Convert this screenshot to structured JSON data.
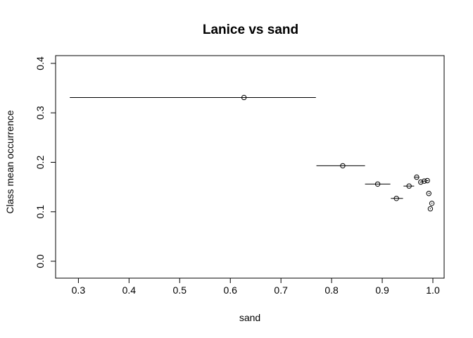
{
  "chart_data": {
    "type": "scatter",
    "title": "Lanice vs sand",
    "xlabel": "sand",
    "ylabel": "Class mean occurrence",
    "xlim": [
      0.28,
      1.0
    ],
    "ylim": [
      0.0,
      0.4
    ],
    "xticks": [
      0.3,
      0.4,
      0.5,
      0.6,
      0.7,
      0.8,
      0.9,
      1.0
    ],
    "xtick_labels": [
      "0.3",
      "0.4",
      "0.5",
      "0.6",
      "0.7",
      "0.8",
      "0.9",
      "1.0"
    ],
    "yticks": [
      0.0,
      0.1,
      0.2,
      0.3,
      0.4
    ],
    "ytick_labels": [
      "0.0",
      "0.1",
      "0.2",
      "0.3",
      "0.4"
    ],
    "grid": false,
    "points": [
      {
        "x": 0.627,
        "y": 0.331,
        "x_min": 0.283,
        "x_max": 0.769
      },
      {
        "x": 0.822,
        "y": 0.193,
        "x_min": 0.77,
        "x_max": 0.866
      },
      {
        "x": 0.891,
        "y": 0.156,
        "x_min": 0.866,
        "x_max": 0.916
      },
      {
        "x": 0.928,
        "y": 0.127,
        "x_min": 0.917,
        "x_max": 0.941
      },
      {
        "x": 0.953,
        "y": 0.152,
        "x_min": 0.942,
        "x_max": 0.963
      },
      {
        "x": 0.968,
        "y": 0.17,
        "x_min": 0.964,
        "x_max": 0.973
      },
      {
        "x": 0.976,
        "y": 0.16,
        "x_min": 0.974,
        "x_max": 0.979
      },
      {
        "x": 0.983,
        "y": 0.162,
        "x_min": 0.98,
        "x_max": 0.986
      },
      {
        "x": 0.989,
        "y": 0.163,
        "x_min": 0.987,
        "x_max": 0.991
      },
      {
        "x": 0.992,
        "y": 0.137,
        "x_min": 0.991,
        "x_max": 0.994
      },
      {
        "x": 0.998,
        "y": 0.117,
        "x_min": 0.997,
        "x_max": 0.999
      },
      {
        "x": 0.995,
        "y": 0.106,
        "x_min": 0.994,
        "x_max": 0.996
      }
    ]
  }
}
